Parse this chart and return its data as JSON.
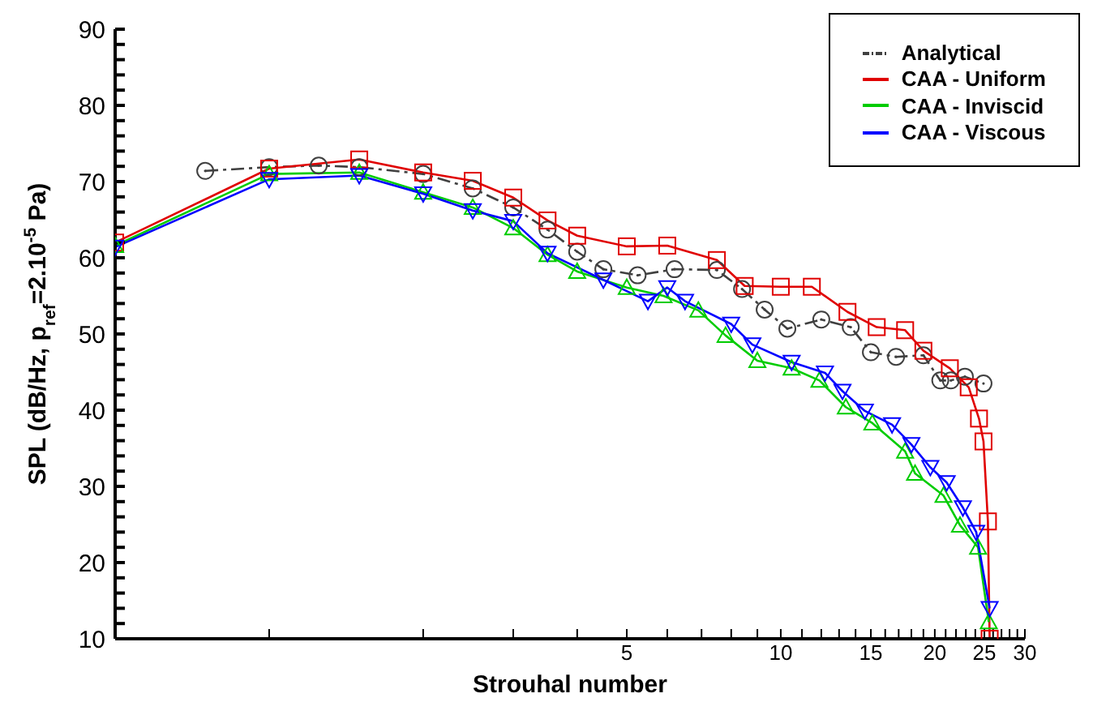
{
  "chart_data": {
    "type": "line",
    "xlabel": "Strouhal number",
    "ylabel": "SPL (dB/Hz, p$_{ref}$=2.10$^{-5}$ Pa)",
    "log": "x",
    "grid": false,
    "legend": "top right",
    "xlim": [
      0.5,
      30
    ],
    "xticks": [
      {
        "value": 1,
        "label": null
      },
      {
        "value": 2,
        "label": null
      },
      {
        "value": 3,
        "label": null
      },
      {
        "value": 4,
        "label": null
      },
      5,
      {
        "value": 6,
        "label": null
      },
      {
        "value": 7,
        "label": null
      },
      {
        "value": 8,
        "label": null
      },
      {
        "value": 9,
        "label": null
      },
      10,
      {
        "value": 11,
        "label": null
      },
      {
        "value": 12,
        "label": null
      },
      {
        "value": 13,
        "label": null
      },
      {
        "value": 14,
        "label": null
      },
      15,
      {
        "value": 16,
        "label": null
      },
      {
        "value": 17,
        "label": null
      },
      {
        "value": 18,
        "label": null
      },
      {
        "value": 19,
        "label": null
      },
      20,
      {
        "value": 21,
        "label": null
      },
      {
        "value": 22,
        "label": null
      },
      {
        "value": 23,
        "label": null
      },
      {
        "value": 24,
        "label": null
      },
      25,
      {
        "value": 26,
        "label": null
      },
      {
        "value": 27,
        "label": null
      },
      {
        "value": 28,
        "label": null
      },
      {
        "value": 29,
        "label": null
      },
      30
    ],
    "ylim": [
      10,
      90
    ],
    "yticks": [
      10,
      {
        "value": 12,
        "label": null
      },
      {
        "value": 14,
        "label": null
      },
      {
        "value": 16,
        "label": null
      },
      {
        "value": 18,
        "label": null
      },
      20,
      {
        "value": 22,
        "label": null
      },
      {
        "value": 24,
        "label": null
      },
      {
        "value": 26,
        "label": null
      },
      {
        "value": 28,
        "label": null
      },
      30,
      {
        "value": 32,
        "label": null
      },
      {
        "value": 34,
        "label": null
      },
      {
        "value": 36,
        "label": null
      },
      {
        "value": 38,
        "label": null
      },
      40,
      {
        "value": 42,
        "label": null
      },
      {
        "value": 44,
        "label": null
      },
      {
        "value": 46,
        "label": null
      },
      {
        "value": 48,
        "label": null
      },
      50,
      {
        "value": 52,
        "label": null
      },
      {
        "value": 54,
        "label": null
      },
      {
        "value": 56,
        "label": null
      },
      {
        "value": 58,
        "label": null
      },
      60,
      {
        "value": 62,
        "label": null
      },
      {
        "value": 64,
        "label": null
      },
      {
        "value": 66,
        "label": null
      },
      {
        "value": 68,
        "label": null
      },
      70,
      {
        "value": 72,
        "label": null
      },
      {
        "value": 74,
        "label": null
      },
      {
        "value": 76,
        "label": null
      },
      {
        "value": 78,
        "label": null
      },
      80,
      {
        "value": 82,
        "label": null
      },
      {
        "value": 84,
        "label": null
      },
      {
        "value": 86,
        "label": null
      },
      {
        "value": 88,
        "label": null
      },
      90
    ],
    "series": [
      {
        "name": "Analytical",
        "color": "#404040",
        "marker": "circle",
        "line_style": "dashed",
        "x": [
          0.75,
          1,
          1.25,
          1.5,
          2,
          2.5,
          3,
          3.5,
          4,
          4.5,
          5.25,
          6.2,
          7.5,
          8.4,
          9.3,
          10.3,
          12,
          13.7,
          15,
          16.8,
          19,
          20.5,
          21.5,
          22.9,
          24.9
        ],
        "values": [
          71.4,
          71.9,
          72.1,
          71.9,
          71,
          69.1,
          66.6,
          63.7,
          60.8,
          58.5,
          57.7,
          58.5,
          58.4,
          55.9,
          53.2,
          50.7,
          51.9,
          50.9,
          47.6,
          47,
          47.2,
          43.9,
          43.9,
          44.4,
          43.5
        ]
      },
      {
        "name": "CAA - Uniform",
        "color": "#e00000",
        "marker": "square",
        "line_style": "solid",
        "x": [
          0.5,
          1,
          1.5,
          2,
          2.5,
          3,
          3.5,
          4,
          5,
          6,
          7.5,
          8.5,
          10,
          11.5,
          13.5,
          15.4,
          17.5,
          19,
          21.4,
          23.3,
          24.4,
          24.9,
          25.4,
          25.6
        ],
        "values": [
          62,
          71.7,
          72.9,
          71.2,
          70.1,
          67.9,
          64.9,
          62.9,
          61.5,
          61.6,
          59.7,
          56.3,
          56.2,
          56.2,
          52.9,
          50.9,
          50.5,
          47.8,
          45.5,
          43,
          38.9,
          35.9,
          25.4,
          10
        ]
      },
      {
        "name": "CAA - Inviscid",
        "color": "#00cc00",
        "marker": "triangle",
        "line_style": "solid",
        "x": [
          0.5,
          1,
          1.5,
          2,
          2.5,
          3,
          3.5,
          4,
          5,
          5.9,
          6.9,
          7.8,
          9,
          10.5,
          11.9,
          13.4,
          15.1,
          17.5,
          18.3,
          20.8,
          22.4,
          24.3,
          25.5
        ],
        "values": [
          61.6,
          71,
          71.2,
          68.6,
          66.6,
          63.9,
          60.4,
          58.2,
          56.1,
          55,
          53.1,
          49.8,
          46.5,
          45.5,
          43.9,
          40.4,
          38.3,
          34.6,
          31.7,
          28.8,
          24.9,
          22,
          12.2
        ]
      },
      {
        "name": "CAA - Viscous",
        "color": "#0000ff",
        "marker": "triangle-down",
        "line_style": "solid",
        "x": [
          0.5,
          1,
          1.5,
          2,
          2.5,
          3,
          3.5,
          4.5,
          5.5,
          6,
          6.5,
          8,
          8.8,
          10.5,
          12.2,
          13.2,
          14.6,
          16.5,
          18,
          19.6,
          21.1,
          22.7,
          24.1,
          25.6
        ],
        "values": [
          61.4,
          70.3,
          70.8,
          68.4,
          66.2,
          64.8,
          60.6,
          57.1,
          54.3,
          56.1,
          54.3,
          51.3,
          48.6,
          46.3,
          44.9,
          42.5,
          39.9,
          38.1,
          35.5,
          32.5,
          30.5,
          27.2,
          24,
          14
        ]
      }
    ]
  }
}
